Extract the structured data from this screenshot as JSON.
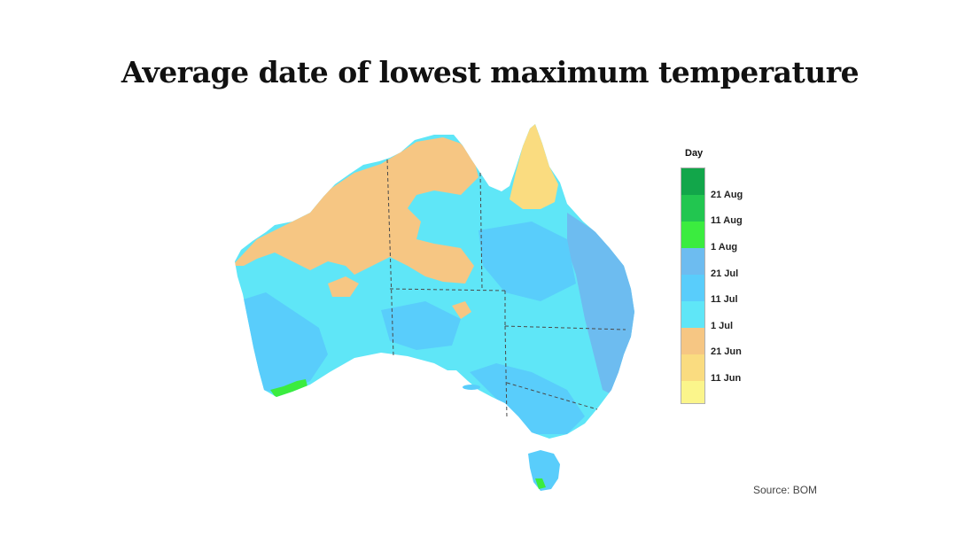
{
  "title": "Average date of lowest maximum temperature",
  "legend": {
    "title": "Day",
    "bins": [
      {
        "color": "#12a64a"
      },
      {
        "label": "21 Aug",
        "color": "#22c650"
      },
      {
        "label": "11 Aug",
        "color": "#3bec3f"
      },
      {
        "label": "1 Aug",
        "color": "#6dbcf0"
      },
      {
        "label": "21 Jul",
        "color": "#59cdfb"
      },
      {
        "label": "11 Jul",
        "color": "#5fe6f7"
      },
      {
        "label": "1 Jul",
        "color": "#f6c683"
      },
      {
        "label": "21 Jun",
        "color": "#fadc80"
      },
      {
        "label": "11 Jun",
        "color": "#fbf58b"
      }
    ]
  },
  "colors": {
    "base": "#5fe6f7",
    "east": "#6dbcf0",
    "mid": "#59cdfb",
    "north_orange": "#f6c683",
    "cape_yellow": "#fadc80",
    "green": "#3bec3f",
    "border": "#4a4a4a"
  },
  "source": "Source: BOM"
}
